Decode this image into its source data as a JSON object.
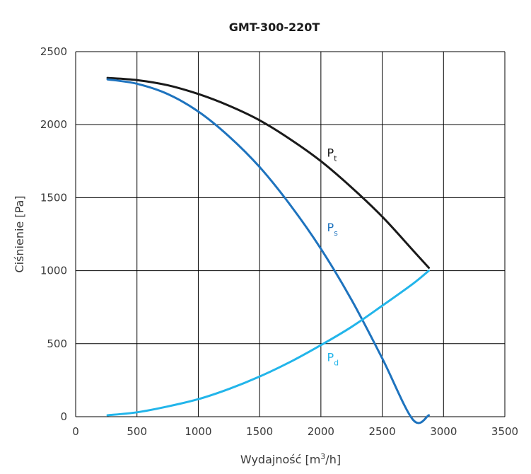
{
  "chart_data": {
    "type": "line",
    "title": "GMT-300-220T",
    "xlabel_prefix": "Wydajność [m",
    "xlabel_sup": "3",
    "xlabel_suffix": "/h]",
    "ylabel": "Ciśnienie [Pa]",
    "xlim": [
      0,
      3500
    ],
    "ylim": [
      0,
      2500
    ],
    "x_ticks": [
      0,
      500,
      1000,
      1500,
      2000,
      2500,
      3000,
      3500
    ],
    "y_ticks": [
      0,
      500,
      1000,
      1500,
      2000,
      2500
    ],
    "grid": true,
    "series": [
      {
        "name": "Pt",
        "label_main": "P",
        "label_sub": "t",
        "color": "#1a1a1a",
        "x": [
          260,
          500,
          750,
          1000,
          1250,
          1500,
          1750,
          2000,
          2250,
          2500,
          2750,
          2880
        ],
        "y": [
          2320,
          2305,
          2270,
          2210,
          2130,
          2030,
          1900,
          1750,
          1570,
          1370,
          1140,
          1020
        ]
      },
      {
        "name": "Ps",
        "label_main": "P",
        "label_sub": "s",
        "color": "#1e73be",
        "x": [
          260,
          500,
          750,
          1000,
          1250,
          1500,
          1750,
          2000,
          2250,
          2500,
          2750,
          2880
        ],
        "y": [
          2310,
          2280,
          2210,
          2090,
          1920,
          1710,
          1450,
          1150,
          800,
          400,
          -20,
          10
        ]
      },
      {
        "name": "Pd",
        "label_main": "P",
        "label_sub": "d",
        "color": "#22b5ea",
        "x": [
          260,
          500,
          750,
          1000,
          1250,
          1500,
          1750,
          2000,
          2250,
          2500,
          2750,
          2880
        ],
        "y": [
          10,
          30,
          70,
          120,
          190,
          275,
          375,
          490,
          615,
          760,
          910,
          1000
        ]
      }
    ],
    "label_positions": {
      "Pt": [
        2050,
        1780
      ],
      "Ps": [
        2050,
        1270
      ],
      "Pd": [
        2050,
        380
      ]
    }
  }
}
